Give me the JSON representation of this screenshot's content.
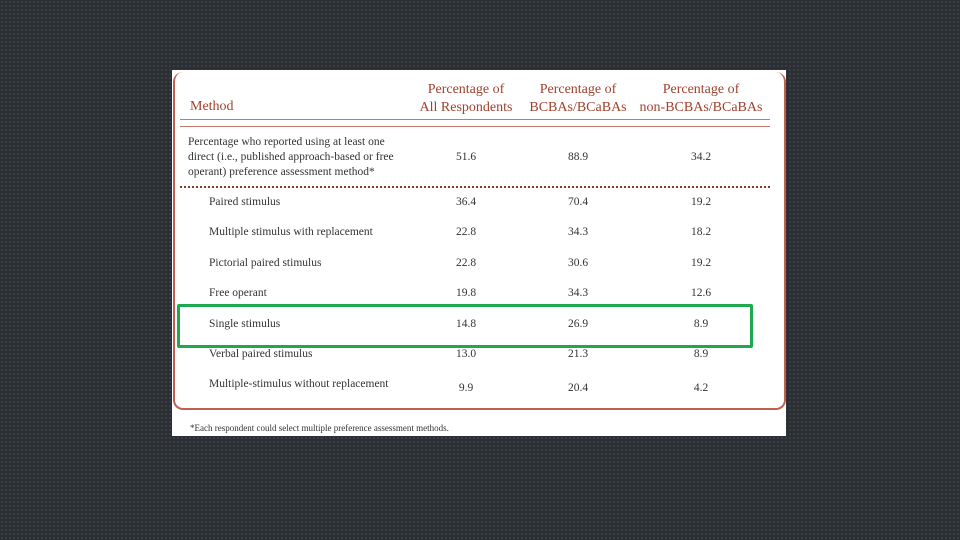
{
  "header": {
    "method": "Method",
    "columns": [
      [
        "Percentage of",
        "All Respondents"
      ],
      [
        "Percentage of",
        "BCBAs/BCaBAs"
      ],
      [
        "Percentage of",
        "non-BCBAs/BCaBAs"
      ]
    ]
  },
  "table": {
    "summary": {
      "method_lines": [
        "Percentage who reported using at least one",
        "direct (i.e., published approach-based or free",
        "operant) preference assessment method*"
      ],
      "values": [
        "51.6",
        "88.9",
        "34.2"
      ]
    },
    "rows": [
      {
        "method": "Paired stimulus",
        "values": [
          "36.4",
          "70.4",
          "19.2"
        ]
      },
      {
        "method": "Multiple stimulus with replacement",
        "values": [
          "22.8",
          "34.3",
          "18.2"
        ]
      },
      {
        "method": "Pictorial paired stimulus",
        "values": [
          "22.8",
          "30.6",
          "19.2"
        ]
      },
      {
        "method": "Free operant",
        "values": [
          "19.8",
          "34.3",
          "12.6"
        ]
      },
      {
        "method": "Single stimulus",
        "values": [
          "14.8",
          "26.9",
          "8.9"
        ]
      },
      {
        "method": "Verbal paired stimulus",
        "values": [
          "13.0",
          "21.3",
          "8.9"
        ]
      },
      {
        "method": "Multiple-stimulus without replacement",
        "values": [
          "9.9",
          "20.4",
          "4.2"
        ]
      }
    ]
  },
  "footnote": "*Each respondent could select multiple preference assessment methods."
}
